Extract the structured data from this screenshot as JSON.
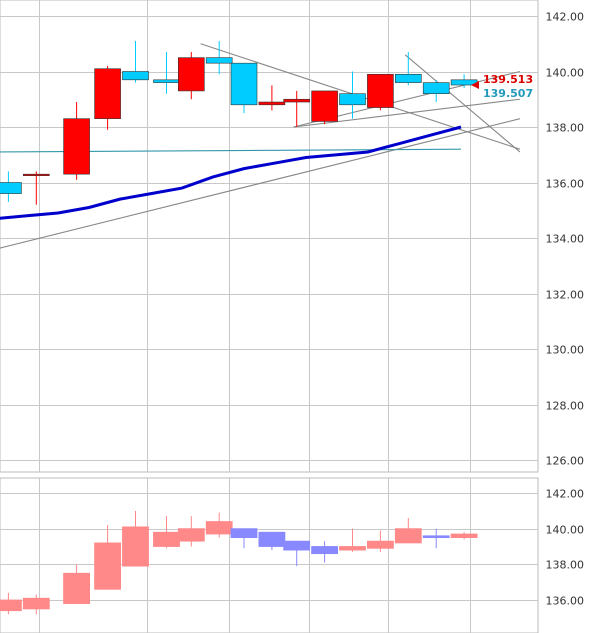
{
  "chart_data": [
    {
      "type": "candlestick",
      "panel": "main",
      "ylim": [
        125.2,
        142.6
      ],
      "yticks": [
        "142.00",
        "140.00",
        "138.00",
        "136.00",
        "134.00",
        "132.00",
        "130.00",
        "128.00",
        "126.00"
      ],
      "ytick_values": [
        142,
        140,
        138,
        136,
        134,
        132,
        130,
        128,
        126
      ],
      "grid": true,
      "colors": {
        "up": "#ff0000",
        "down": "#00ccff",
        "ma": "#0000cc",
        "ma_thin": "#3399aa",
        "trend": "#888888"
      },
      "candles": [
        {
          "i": -0.6,
          "o": 136.0,
          "h": 136.4,
          "l": 135.3,
          "c": 135.6
        },
        {
          "i": 0.3,
          "o": 136.3,
          "h": 136.4,
          "l": 135.2,
          "c": 136.3
        },
        {
          "i": 1.6,
          "o": 136.3,
          "h": 138.9,
          "l": 136.1,
          "c": 138.3
        },
        {
          "i": 2.6,
          "o": 138.3,
          "h": 140.2,
          "l": 137.9,
          "c": 140.1
        },
        {
          "i": 3.5,
          "o": 140.0,
          "h": 141.1,
          "l": 139.6,
          "c": 139.7
        },
        {
          "i": 4.5,
          "o": 139.7,
          "h": 140.7,
          "l": 139.2,
          "c": 139.6
        },
        {
          "i": 5.3,
          "o": 139.3,
          "h": 140.7,
          "l": 139.0,
          "c": 140.5
        },
        {
          "i": 6.2,
          "o": 140.5,
          "h": 141.1,
          "l": 139.9,
          "c": 140.3
        },
        {
          "i": 7.0,
          "o": 140.3,
          "h": 140.3,
          "l": 138.5,
          "c": 138.8
        },
        {
          "i": 7.9,
          "o": 138.8,
          "h": 139.5,
          "l": 138.6,
          "c": 138.9
        },
        {
          "i": 8.7,
          "o": 138.9,
          "h": 139.3,
          "l": 138.0,
          "c": 139.0
        },
        {
          "i": 9.6,
          "o": 138.2,
          "h": 139.3,
          "l": 138.1,
          "c": 139.3
        },
        {
          "i": 10.5,
          "o": 139.2,
          "h": 140.0,
          "l": 138.3,
          "c": 138.8
        },
        {
          "i": 11.4,
          "o": 138.7,
          "h": 139.9,
          "l": 138.6,
          "c": 139.9
        },
        {
          "i": 12.3,
          "o": 139.9,
          "h": 140.7,
          "l": 139.5,
          "c": 139.6
        },
        {
          "i": 13.2,
          "o": 139.6,
          "h": 139.7,
          "l": 138.9,
          "c": 139.2
        },
        {
          "i": 14.1,
          "o": 139.7,
          "h": 139.9,
          "l": 139.4,
          "c": 139.513
        }
      ],
      "moving_average": {
        "x": [
          -1.0,
          0.0,
          1.0,
          2.0,
          3.0,
          4.0,
          5.0,
          6.0,
          7.0,
          8.0,
          9.0,
          10.0,
          11.0,
          12.0,
          13.0,
          14.0
        ],
        "y": [
          134.7,
          134.8,
          134.9,
          135.1,
          135.4,
          135.6,
          135.8,
          136.2,
          136.5,
          136.7,
          136.9,
          137.0,
          137.1,
          137.4,
          137.7,
          138.0
        ]
      },
      "moving_average_thin": {
        "x": [
          -1.0,
          14.0
        ],
        "y": [
          137.1,
          137.2
        ]
      },
      "trendlines": [
        {
          "x": [
            -1.0,
            15.9
          ],
          "y": [
            133.6,
            138.3
          ]
        },
        {
          "x": [
            5.6,
            15.9
          ],
          "y": [
            141.0,
            137.2
          ]
        },
        {
          "x": [
            8.6,
            15.9
          ],
          "y": [
            138.0,
            140.0
          ]
        },
        {
          "x": [
            8.6,
            15.9
          ],
          "y": [
            138.0,
            139.0
          ]
        },
        {
          "x": [
            12.2,
            15.9
          ],
          "y": [
            140.6,
            137.1
          ]
        }
      ],
      "price_labels": [
        {
          "value": 139.513,
          "text": "139.513",
          "color": "#dd0000"
        },
        {
          "value": 139.507,
          "text": "139.507",
          "color": "#2299bb"
        }
      ]
    },
    {
      "type": "candlestick",
      "panel": "lower",
      "ylim": [
        134.7,
        142.6
      ],
      "yticks": [
        "142.00",
        "140.00",
        "138.00",
        "136.00"
      ],
      "ytick_values": [
        142,
        140,
        138,
        136
      ],
      "grid": true,
      "colors": {
        "up": "#ff8888",
        "down": "#8888ff"
      },
      "candles": [
        {
          "i": -0.6,
          "o": 135.4,
          "h": 136.4,
          "l": 135.2,
          "c": 136.0
        },
        {
          "i": 0.3,
          "o": 135.5,
          "h": 136.3,
          "l": 135.2,
          "c": 136.1
        },
        {
          "i": 1.6,
          "o": 135.8,
          "h": 138.0,
          "l": 135.8,
          "c": 137.5
        },
        {
          "i": 2.6,
          "o": 136.6,
          "h": 140.2,
          "l": 136.6,
          "c": 139.2
        },
        {
          "i": 3.5,
          "o": 137.9,
          "h": 141.0,
          "l": 137.9,
          "c": 140.1
        },
        {
          "i": 4.5,
          "o": 139.0,
          "h": 140.7,
          "l": 138.9,
          "c": 139.8
        },
        {
          "i": 5.3,
          "o": 139.3,
          "h": 140.7,
          "l": 139.0,
          "c": 140.0
        },
        {
          "i": 6.2,
          "o": 139.7,
          "h": 140.9,
          "l": 139.5,
          "c": 140.4
        },
        {
          "i": 7.0,
          "o": 140.0,
          "h": 140.0,
          "l": 138.9,
          "c": 139.5
        },
        {
          "i": 7.9,
          "o": 139.8,
          "h": 139.8,
          "l": 138.8,
          "c": 139.0
        },
        {
          "i": 8.7,
          "o": 139.3,
          "h": 139.3,
          "l": 137.9,
          "c": 138.8
        },
        {
          "i": 9.6,
          "o": 139.0,
          "h": 139.3,
          "l": 138.1,
          "c": 138.6
        },
        {
          "i": 10.5,
          "o": 138.8,
          "h": 140.0,
          "l": 138.7,
          "c": 139.0
        },
        {
          "i": 11.4,
          "o": 138.9,
          "h": 139.9,
          "l": 138.7,
          "c": 139.3
        },
        {
          "i": 12.3,
          "o": 139.2,
          "h": 140.6,
          "l": 139.2,
          "c": 140.0
        },
        {
          "i": 13.2,
          "o": 139.6,
          "h": 140.0,
          "l": 138.9,
          "c": 139.5
        },
        {
          "i": 14.1,
          "o": 139.5,
          "h": 139.8,
          "l": 139.4,
          "c": 139.7
        }
      ]
    }
  ]
}
